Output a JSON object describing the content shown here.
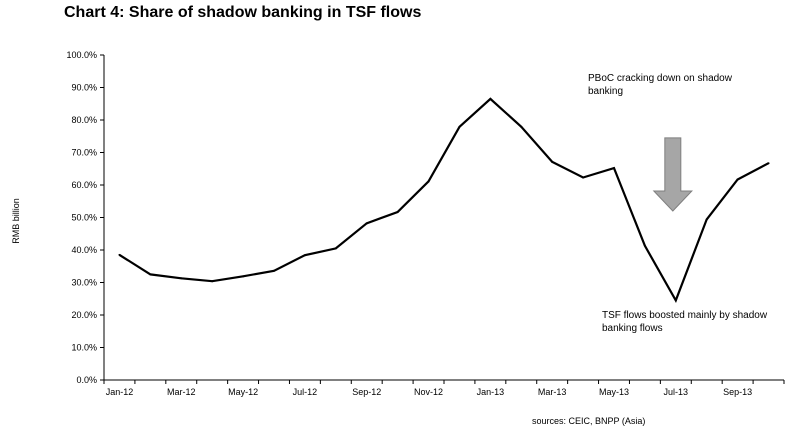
{
  "chart_data": {
    "type": "line",
    "title": "Chart 4: Share of shadow banking in TSF flows",
    "ylabel": "RMB billion",
    "xlabel": "",
    "ylim": [
      0,
      100
    ],
    "y_ticks": [
      "0.0%",
      "10.0%",
      "20.0%",
      "30.0%",
      "40.0%",
      "50.0%",
      "60.0%",
      "70.0%",
      "80.0%",
      "90.0%",
      "100.0%"
    ],
    "x_tick_labels": [
      "Jan-12",
      "Mar-12",
      "May-12",
      "Jul-12",
      "Sep-12",
      "Nov-12",
      "Jan-13",
      "Mar-13",
      "May-13",
      "Jul-13",
      "Sep-13"
    ],
    "categories": [
      "Jan-12",
      "Feb-12",
      "Mar-12",
      "Apr-12",
      "May-12",
      "Jun-12",
      "Jul-12",
      "Aug-12",
      "Sep-12",
      "Oct-12",
      "Nov-12",
      "Dec-12",
      "Jan-13",
      "Feb-13",
      "Mar-13",
      "Apr-13",
      "May-13",
      "Jun-13",
      "Jul-13",
      "Aug-13",
      "Sep-13",
      "Oct-13"
    ],
    "series": [
      {
        "values": [
          38.5,
          32.5,
          31.3,
          30.4,
          31.9,
          33.6,
          38.4,
          40.5,
          48.2,
          51.7,
          61.1,
          77.9,
          86.5,
          77.9,
          67.1,
          62.3,
          65.2,
          41.3,
          24.5,
          49.4,
          61.7,
          66.7
        ],
        "color": "#000000"
      }
    ],
    "grid": false,
    "annotations": [
      {
        "text_lines": [
          "PBoC cracking down on shadow",
          "banking"
        ]
      },
      {
        "text_lines": [
          "TSF flows boosted mainly by shadow",
          "banking flows"
        ]
      }
    ],
    "arrow": {
      "direction": "down",
      "fill": "#a6a6a6",
      "stroke": "#7f7f7f",
      "at_category": "Jul-13",
      "from_value": 74.5,
      "to_value": 52
    }
  },
  "source": "sources: CEIC, BNPP (Asia)"
}
